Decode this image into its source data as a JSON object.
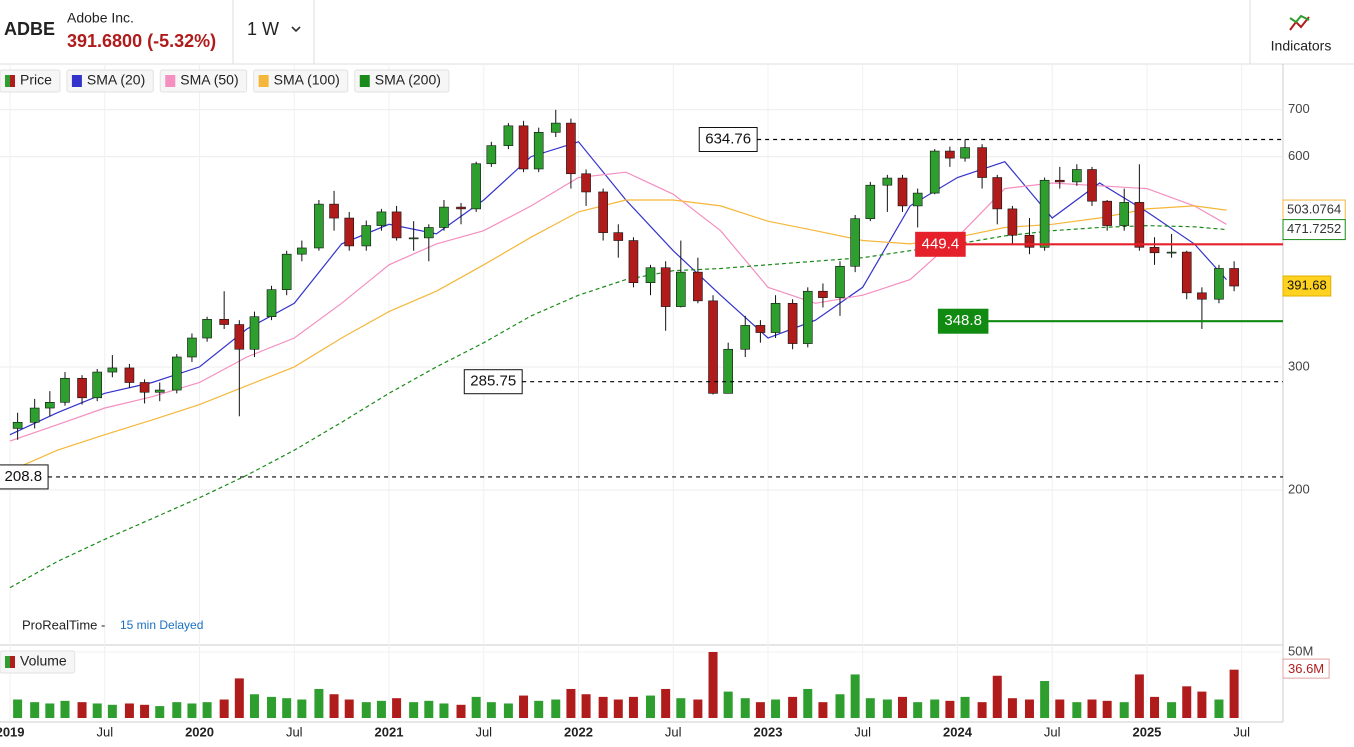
{
  "header": {
    "symbol": "ADBE",
    "name": "Adobe Inc.",
    "price": "391.6800 (-5.32%)",
    "interval": "1 W",
    "indicators_button": "Indicators"
  },
  "footer": {
    "source": "ProRealTime -",
    "delay": "15 min Delayed"
  },
  "chart_data": {
    "type": "candlestick",
    "log_scale": true,
    "grid": true,
    "up_color": "#2e9e2e",
    "down_color": "#b01c1c",
    "price_legend": "Price",
    "x": [
      2019.04,
      2019.13,
      2019.21,
      2019.29,
      2019.38,
      2019.46,
      2019.54,
      2019.63,
      2019.71,
      2019.79,
      2019.88,
      2019.96,
      2020.04,
      2020.13,
      2020.21,
      2020.29,
      2020.38,
      2020.46,
      2020.54,
      2020.63,
      2020.71,
      2020.79,
      2020.88,
      2020.96,
      2021.04,
      2021.13,
      2021.21,
      2021.29,
      2021.38,
      2021.46,
      2021.54,
      2021.63,
      2021.71,
      2021.79,
      2021.88,
      2021.96,
      2022.04,
      2022.13,
      2022.21,
      2022.29,
      2022.38,
      2022.46,
      2022.54,
      2022.63,
      2022.71,
      2022.79,
      2022.88,
      2022.96,
      2023.04,
      2023.13,
      2023.21,
      2023.29,
      2023.38,
      2023.46,
      2023.54,
      2023.63,
      2023.71,
      2023.79,
      2023.88,
      2023.96,
      2024.04,
      2024.13,
      2024.21,
      2024.29,
      2024.38,
      2024.46,
      2024.54,
      2024.63,
      2024.71,
      2024.79,
      2024.88,
      2024.96,
      2025.04,
      2025.13,
      2025.21,
      2025.29,
      2025.38,
      2025.46
    ],
    "open": [
      245,
      250,
      262,
      267,
      289,
      271,
      295,
      299,
      285,
      276,
      278,
      310,
      330,
      351,
      345,
      318,
      354,
      387,
      435,
      444,
      513,
      490,
      447,
      478,
      500,
      459,
      459,
      475,
      508,
      505,
      586,
      622,
      664,
      576,
      650,
      670,
      567,
      534,
      467,
      455,
      396,
      416,
      366,
      410,
      373,
      275,
      318,
      344,
      336,
      370,
      324,
      385,
      377,
      418,
      489,
      546,
      559,
      510,
      532,
      611,
      597,
      618,
      560,
      505,
      463,
      445,
      555,
      552,
      575,
      518,
      478,
      516,
      445,
      437,
      438,
      383,
      375,
      415
    ],
    "high": [
      258,
      270,
      277,
      295,
      292,
      298,
      312,
      303,
      288,
      285,
      313,
      335,
      354,
      385,
      350,
      360,
      392,
      440,
      455,
      520,
      536,
      500,
      486,
      505,
      510,
      485,
      480,
      520,
      515,
      590,
      630,
      670,
      675,
      660,
      700,
      680,
      575,
      540,
      480,
      460,
      420,
      425,
      455,
      430,
      380,
      325,
      355,
      350,
      380,
      375,
      390,
      395,
      425,
      495,
      552,
      565,
      565,
      540,
      615,
      620,
      634.76,
      625,
      565,
      510,
      490,
      560,
      580,
      585,
      580,
      520,
      540,
      585,
      460,
      465,
      440,
      390,
      420,
      425
    ],
    "low": [
      236,
      245,
      255,
      264,
      265,
      268,
      290,
      280,
      266,
      268,
      275,
      305,
      326,
      340,
      255,
      310,
      350,
      380,
      425,
      440,
      470,
      440,
      440,
      470,
      455,
      440,
      425,
      470,
      480,
      500,
      580,
      615,
      570,
      570,
      640,
      540,
      510,
      455,
      430,
      390,
      380,
      338,
      365,
      370,
      274,
      275,
      310,
      325,
      330,
      318,
      320,
      365,
      355,
      410,
      485,
      500,
      500,
      475,
      530,
      580,
      590,
      540,
      480,
      450,
      435,
      440,
      540,
      545,
      510,
      470,
      470,
      440,
      420,
      430,
      375,
      340,
      370,
      385
    ],
    "close": [
      250,
      262,
      267,
      289,
      271,
      295,
      299,
      285,
      276,
      278,
      310,
      330,
      351,
      345,
      318,
      354,
      387,
      435,
      444,
      513,
      490,
      447,
      478,
      500,
      459,
      459,
      475,
      508,
      505,
      586,
      622,
      664,
      576,
      650,
      670,
      567,
      534,
      467,
      455,
      396,
      416,
      366,
      410,
      373,
      275,
      318,
      344,
      336,
      370,
      324,
      385,
      377,
      418,
      489,
      546,
      559,
      510,
      532,
      611,
      597,
      618,
      560,
      505,
      463,
      445,
      555,
      552,
      575,
      518,
      478,
      516,
      445,
      437,
      438,
      383,
      375,
      415,
      391.68
    ],
    "overlays": [
      {
        "name": "SMA (20)",
        "color": "#3333cc",
        "dashed": false,
        "show_last_label": false,
        "x": [
          2019.0,
          2019.25,
          2019.5,
          2019.75,
          2020.0,
          2020.25,
          2020.5,
          2020.75,
          2021.0,
          2021.25,
          2021.5,
          2021.75,
          2022.0,
          2022.25,
          2022.5,
          2022.75,
          2023.0,
          2023.25,
          2023.5,
          2023.75,
          2024.0,
          2024.25,
          2024.5,
          2024.75,
          2025.0,
          2025.25,
          2025.42
        ],
        "values": [
          240,
          258,
          275,
          285,
          300,
          340,
          370,
          450,
          480,
          465,
          520,
          600,
          630,
          520,
          440,
          380,
          330,
          350,
          390,
          510,
          560,
          590,
          490,
          550,
          500,
          450,
          400
        ]
      },
      {
        "name": "SMA (50)",
        "color": "#f48fc0",
        "dashed": false,
        "show_last_label": false,
        "x": [
          2019.0,
          2019.25,
          2019.5,
          2019.75,
          2020.0,
          2020.25,
          2020.5,
          2020.75,
          2021.0,
          2021.25,
          2021.5,
          2021.75,
          2022.0,
          2022.25,
          2022.5,
          2022.75,
          2023.0,
          2023.25,
          2023.5,
          2023.75,
          2024.0,
          2024.25,
          2024.5,
          2024.75,
          2025.0,
          2025.25,
          2025.42
        ],
        "values": [
          235,
          248,
          262,
          272,
          285,
          310,
          330,
          370,
          420,
          450,
          470,
          510,
          560,
          570,
          530,
          470,
          390,
          370,
          380,
          400,
          460,
          540,
          550,
          545,
          540,
          510,
          480
        ]
      },
      {
        "name": "SMA (100)",
        "color": "#f5b73b",
        "dashed": false,
        "show_last_label": true,
        "x": [
          2019.0,
          2019.25,
          2019.5,
          2019.75,
          2020.0,
          2020.25,
          2020.5,
          2020.75,
          2021.0,
          2021.25,
          2021.5,
          2021.75,
          2022.0,
          2022.25,
          2022.5,
          2022.75,
          2023.0,
          2023.25,
          2023.5,
          2023.75,
          2024.0,
          2024.25,
          2024.5,
          2024.75,
          2025.0,
          2025.25,
          2025.42
        ],
        "values": [
          213,
          228,
          240,
          252,
          265,
          282,
          300,
          330,
          360,
          385,
          420,
          460,
          500,
          520,
          520,
          510,
          485,
          470,
          455,
          450,
          460,
          475,
          480,
          490,
          505,
          510,
          503.0764
        ]
      },
      {
        "name": "SMA (200)",
        "color": "#1a8a1a",
        "dashed": true,
        "show_last_label": true,
        "x": [
          2019.0,
          2019.25,
          2019.5,
          2019.75,
          2020.0,
          2020.25,
          2020.5,
          2020.75,
          2021.0,
          2021.25,
          2021.5,
          2021.75,
          2022.0,
          2022.25,
          2022.5,
          2022.75,
          2023.0,
          2023.25,
          2023.5,
          2023.75,
          2024.0,
          2024.25,
          2024.5,
          2024.75,
          2025.0,
          2025.25,
          2025.42
        ],
        "values": [
          145,
          158,
          170,
          182,
          195,
          210,
          228,
          250,
          275,
          300,
          325,
          355,
          380,
          400,
          412,
          415,
          420,
          425,
          430,
          440,
          450,
          462,
          470,
          475,
          478,
          476,
          471.7252
        ]
      }
    ],
    "levels": [
      {
        "value": 634.76,
        "x": 2022.79,
        "color": "#000000",
        "dashed": true
      },
      {
        "value": 285.75,
        "x": 2021.55,
        "color": "#000000",
        "dashed": true
      },
      {
        "value": 208.8,
        "x": 2019.07,
        "color": "#000000",
        "dashed": true
      },
      {
        "value": 449.4,
        "x": 2023.91,
        "color": "#e5202a",
        "dashed": false
      },
      {
        "value": 348.8,
        "x": 2024.03,
        "color": "#108a10",
        "dashed": false
      }
    ],
    "ylim": [
      122,
      735
    ],
    "yticks": [
      200,
      300,
      600,
      700
    ],
    "xlim": [
      2018.947,
      2025.718
    ],
    "xticks": [
      {
        "value": 2019,
        "label": "2019"
      },
      {
        "value": 2019.5,
        "label": "Jul"
      },
      {
        "value": 2020,
        "label": "2020"
      },
      {
        "value": 2020.5,
        "label": "Jul"
      },
      {
        "value": 2021,
        "label": "2021"
      },
      {
        "value": 2021.5,
        "label": "Jul"
      },
      {
        "value": 2022,
        "label": "2022"
      },
      {
        "value": 2022.5,
        "label": "Jul"
      },
      {
        "value": 2023,
        "label": "2023"
      },
      {
        "value": 2023.5,
        "label": "Jul"
      },
      {
        "value": 2024,
        "label": "2024"
      },
      {
        "value": 2024.5,
        "label": "Jul"
      },
      {
        "value": 2025,
        "label": "2025"
      },
      {
        "value": 2025.5,
        "label": "Jul"
      }
    ],
    "volume": {
      "label": "Volume",
      "ylim": [
        0,
        55300000
      ],
      "yticks": [
        {
          "value": 50000000,
          "label": "50M"
        }
      ],
      "last_value_label": "36.6M",
      "values": [
        14000000,
        12000000,
        11000000,
        13000000,
        12000000,
        11000000,
        10000000,
        11000000,
        10000000,
        9000000,
        12000000,
        11000000,
        12000000,
        14000000,
        30000000,
        18000000,
        16000000,
        15000000,
        14000000,
        22000000,
        18000000,
        14000000,
        12000000,
        13000000,
        15000000,
        12000000,
        13000000,
        11000000,
        10000000,
        16000000,
        12000000,
        11000000,
        17000000,
        13000000,
        14000000,
        22000000,
        18000000,
        16000000,
        14000000,
        16000000,
        17000000,
        22000000,
        15000000,
        14000000,
        50000000,
        20000000,
        15000000,
        12000000,
        14000000,
        16000000,
        22000000,
        12000000,
        18000000,
        33000000,
        15000000,
        14000000,
        16000000,
        12000000,
        14000000,
        13000000,
        16000000,
        12000000,
        32000000,
        15000000,
        14000000,
        28000000,
        14000000,
        12000000,
        14000000,
        13000000,
        12000000,
        33000000,
        16000000,
        12000000,
        24000000,
        20000000,
        14000000,
        36600000
      ]
    }
  }
}
